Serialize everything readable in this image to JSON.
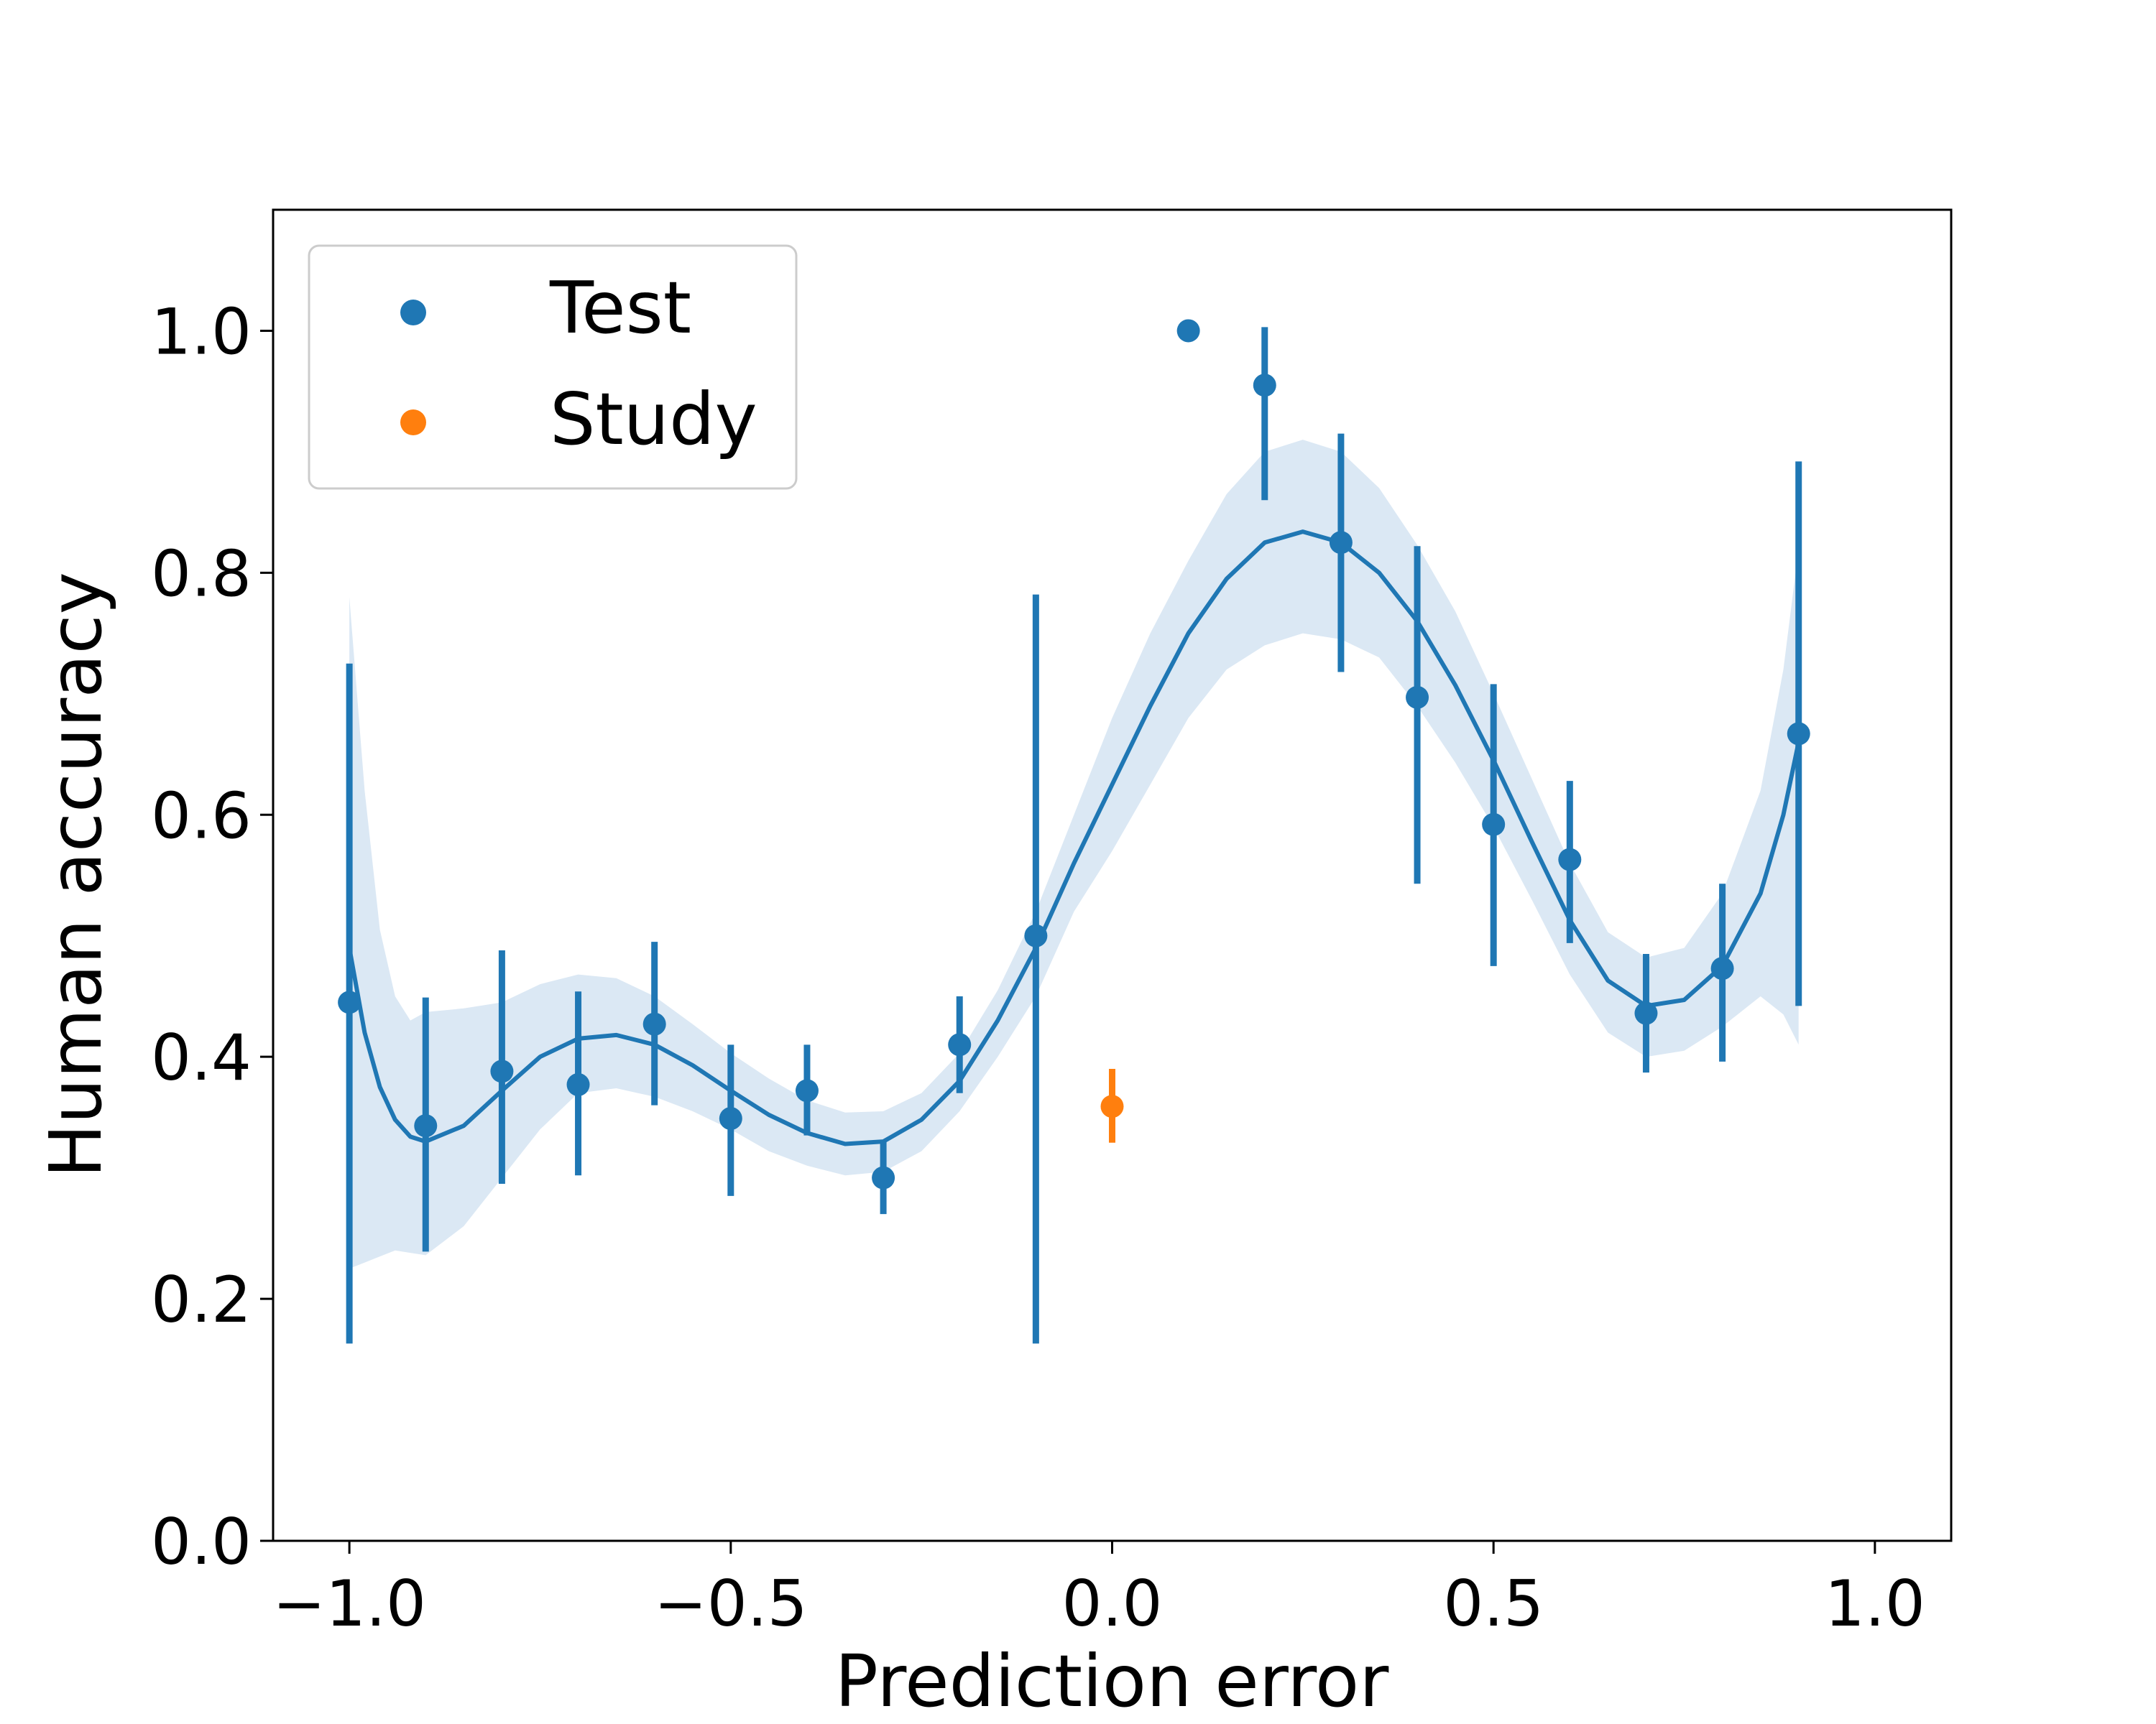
{
  "chart_data": {
    "type": "scatter",
    "title": "",
    "xlabel": "Prediction error",
    "ylabel": "Human accuracy",
    "xlim": [
      -1.1,
      1.1
    ],
    "ylim": [
      0.0,
      1.1
    ],
    "x_ticks": [
      -1.0,
      -0.5,
      0.0,
      0.5,
      1.0
    ],
    "x_tick_labels": [
      "−1.0",
      "−0.5",
      "0.0",
      "0.5",
      "1.0"
    ],
    "y_ticks": [
      0.0,
      0.2,
      0.4,
      0.6,
      0.8,
      1.0
    ],
    "y_tick_labels": [
      "0.0",
      "0.2",
      "0.4",
      "0.6",
      "0.8",
      "1.0"
    ],
    "grid": false,
    "legend_position": "top-left",
    "colors": {
      "test": "#1f77b4",
      "study": "#ff7f0e",
      "band": "#dbe8f4"
    },
    "series": [
      {
        "name": "Test",
        "points": [
          {
            "x": -1.0,
            "y": 0.445,
            "ylow": 0.163,
            "yhigh": 0.725
          },
          {
            "x": -0.9,
            "y": 0.343,
            "ylow": 0.239,
            "yhigh": 0.449
          },
          {
            "x": -0.8,
            "y": 0.388,
            "ylow": 0.295,
            "yhigh": 0.488
          },
          {
            "x": -0.7,
            "y": 0.377,
            "ylow": 0.302,
            "yhigh": 0.454
          },
          {
            "x": -0.6,
            "y": 0.427,
            "ylow": 0.36,
            "yhigh": 0.495
          },
          {
            "x": -0.5,
            "y": 0.349,
            "ylow": 0.285,
            "yhigh": 0.41
          },
          {
            "x": -0.4,
            "y": 0.372,
            "ylow": 0.335,
            "yhigh": 0.41
          },
          {
            "x": -0.3,
            "y": 0.3,
            "ylow": 0.27,
            "yhigh": 0.33
          },
          {
            "x": -0.2,
            "y": 0.41,
            "ylow": 0.37,
            "yhigh": 0.45
          },
          {
            "x": -0.1,
            "y": 0.5,
            "ylow": 0.163,
            "yhigh": 0.782
          },
          {
            "x": 0.1,
            "y": 1.0,
            "ylow": 1.0,
            "yhigh": 1.0
          },
          {
            "x": 0.2,
            "y": 0.955,
            "ylow": 0.86,
            "yhigh": 1.003
          },
          {
            "x": 0.3,
            "y": 0.825,
            "ylow": 0.718,
            "yhigh": 0.915
          },
          {
            "x": 0.4,
            "y": 0.697,
            "ylow": 0.543,
            "yhigh": 0.822
          },
          {
            "x": 0.5,
            "y": 0.592,
            "ylow": 0.475,
            "yhigh": 0.708
          },
          {
            "x": 0.6,
            "y": 0.563,
            "ylow": 0.494,
            "yhigh": 0.628
          },
          {
            "x": 0.7,
            "y": 0.436,
            "ylow": 0.387,
            "yhigh": 0.485
          },
          {
            "x": 0.8,
            "y": 0.473,
            "ylow": 0.396,
            "yhigh": 0.543
          },
          {
            "x": 0.9,
            "y": 0.667,
            "ylow": 0.442,
            "yhigh": 0.892
          }
        ]
      },
      {
        "name": "Study",
        "points": [
          {
            "x": 0.0,
            "y": 0.359,
            "ylow": 0.329,
            "yhigh": 0.39
          }
        ]
      }
    ],
    "fit_curve": {
      "x": [
        -1.0,
        -0.98,
        -0.96,
        -0.94,
        -0.92,
        -0.9,
        -0.85,
        -0.8,
        -0.75,
        -0.7,
        -0.65,
        -0.6,
        -0.55,
        -0.5,
        -0.45,
        -0.4,
        -0.35,
        -0.3,
        -0.25,
        -0.2,
        -0.15,
        -0.1,
        -0.05,
        0.0,
        0.05,
        0.1,
        0.15,
        0.2,
        0.25,
        0.3,
        0.35,
        0.4,
        0.45,
        0.5,
        0.55,
        0.6,
        0.65,
        0.7,
        0.75,
        0.8,
        0.85,
        0.88,
        0.9
      ],
      "y": [
        0.49,
        0.42,
        0.375,
        0.348,
        0.334,
        0.33,
        0.343,
        0.372,
        0.4,
        0.415,
        0.418,
        0.41,
        0.393,
        0.372,
        0.352,
        0.337,
        0.328,
        0.33,
        0.348,
        0.38,
        0.43,
        0.49,
        0.56,
        0.625,
        0.69,
        0.75,
        0.795,
        0.825,
        0.834,
        0.825,
        0.8,
        0.76,
        0.707,
        0.645,
        0.578,
        0.513,
        0.463,
        0.442,
        0.447,
        0.475,
        0.535,
        0.6,
        0.66
      ],
      "band_upper": [
        0.78,
        0.62,
        0.505,
        0.45,
        0.43,
        0.437,
        0.44,
        0.445,
        0.46,
        0.468,
        0.465,
        0.45,
        0.427,
        0.403,
        0.382,
        0.364,
        0.354,
        0.355,
        0.37,
        0.403,
        0.455,
        0.52,
        0.6,
        0.68,
        0.75,
        0.81,
        0.865,
        0.9,
        0.91,
        0.9,
        0.87,
        0.823,
        0.768,
        0.7,
        0.63,
        0.56,
        0.503,
        0.482,
        0.49,
        0.535,
        0.62,
        0.72,
        0.82
      ],
      "band_lower": [
        0.225,
        0.23,
        0.235,
        0.24,
        0.238,
        0.236,
        0.26,
        0.3,
        0.34,
        0.37,
        0.374,
        0.367,
        0.355,
        0.34,
        0.322,
        0.31,
        0.302,
        0.305,
        0.322,
        0.355,
        0.4,
        0.45,
        0.52,
        0.57,
        0.625,
        0.68,
        0.72,
        0.74,
        0.75,
        0.745,
        0.73,
        0.69,
        0.643,
        0.59,
        0.53,
        0.468,
        0.42,
        0.4,
        0.405,
        0.425,
        0.45,
        0.435,
        0.41
      ]
    }
  }
}
